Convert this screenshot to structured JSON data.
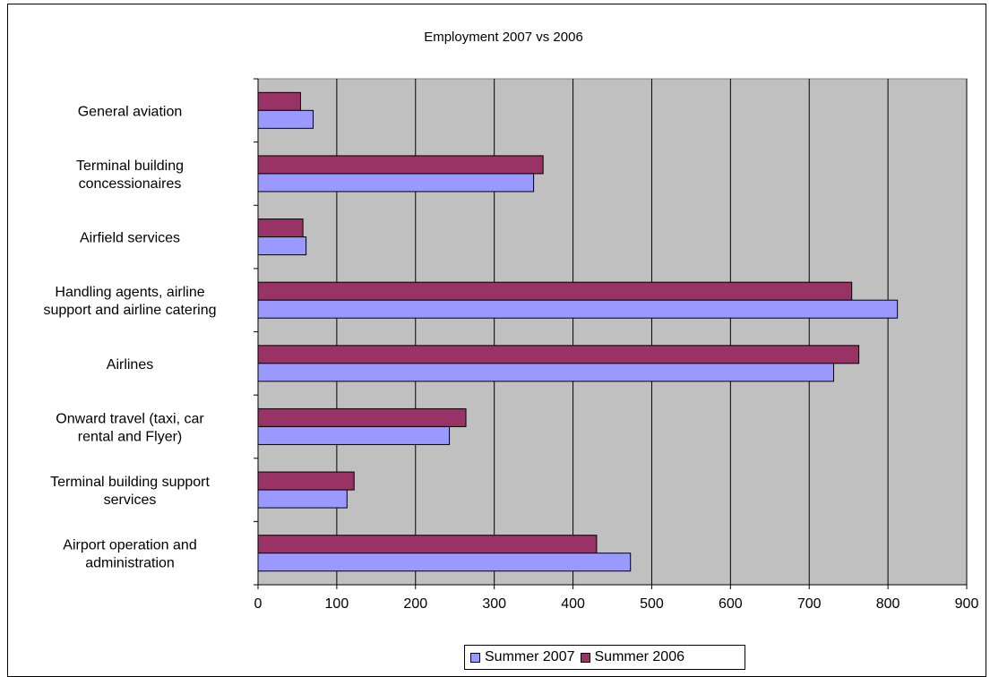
{
  "chart_data": {
    "type": "bar",
    "orientation": "horizontal",
    "title": "Employment 2007 vs 2006",
    "categories": [
      [
        "General aviation"
      ],
      [
        "Terminal building",
        "concessionaires"
      ],
      [
        "Airfield services"
      ],
      [
        "Handling agents, airline",
        "support and airline catering"
      ],
      [
        "Airlines"
      ],
      [
        "Onward travel (taxi, car",
        "rental and Flyer)"
      ],
      [
        "Terminal building support",
        "services"
      ],
      [
        "Airport operation and",
        "administration"
      ]
    ],
    "series": [
      {
        "name": "Summer 2007",
        "color": "#9999ff",
        "values": [
          70,
          350,
          61,
          812,
          731,
          243,
          113,
          473
        ]
      },
      {
        "name": "Summer 2006",
        "color": "#993366",
        "values": [
          54,
          362,
          57,
          754,
          763,
          264,
          122,
          430
        ]
      }
    ],
    "xlim": [
      0,
      900
    ],
    "xticks": [
      "0",
      "100",
      "200",
      "300",
      "400",
      "500",
      "600",
      "700",
      "800",
      "900"
    ],
    "grid": true,
    "plot_background": "#c0c0c0",
    "legend_position": "bottom"
  }
}
